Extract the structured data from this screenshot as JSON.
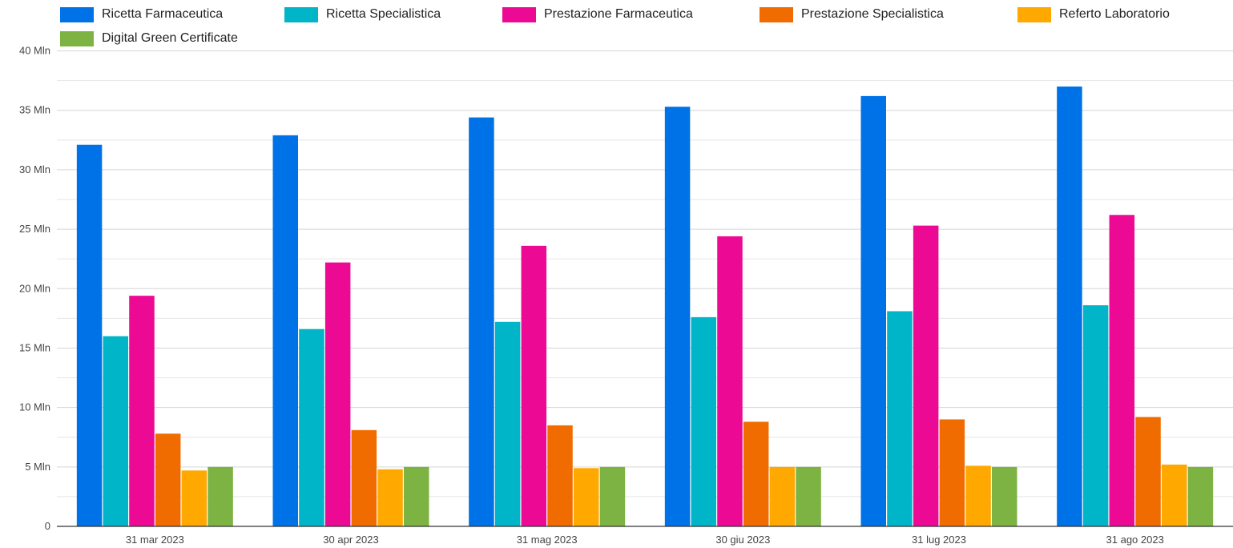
{
  "chart_data": {
    "type": "bar",
    "categories": [
      "31 mar 2023",
      "30 apr 2023",
      "31 mag 2023",
      "30 giu 2023",
      "31 lug 2023",
      "31 ago 2023"
    ],
    "series": [
      {
        "name": "Ricetta Farmaceutica",
        "color": "#0072e8",
        "values": [
          32.1,
          32.9,
          34.4,
          35.3,
          36.2,
          37.0
        ]
      },
      {
        "name": "Ricetta Specialistica",
        "color": "#00b5c8",
        "values": [
          16.0,
          16.6,
          17.2,
          17.6,
          18.1,
          18.6
        ]
      },
      {
        "name": "Prestazione Farmaceutica",
        "color": "#ec0a94",
        "values": [
          19.4,
          22.2,
          23.6,
          24.4,
          25.3,
          26.2
        ]
      },
      {
        "name": "Prestazione Specialistica",
        "color": "#f06c00",
        "values": [
          7.8,
          8.1,
          8.5,
          8.8,
          9.0,
          9.2
        ]
      },
      {
        "name": "Referto Laboratorio",
        "color": "#ffa800",
        "values": [
          4.7,
          4.8,
          4.9,
          5.0,
          5.1,
          5.2
        ]
      },
      {
        "name": "Digital Green Certificate",
        "color": "#7cb342",
        "values": [
          5.0,
          5.0,
          5.0,
          5.0,
          5.0,
          5.0
        ]
      }
    ],
    "yticks": [
      "0",
      "5 Mln",
      "10 Mln",
      "15 Mln",
      "20 Mln",
      "25 Mln",
      "30 Mln",
      "35 Mln",
      "40 Mln"
    ],
    "ylim": [
      0,
      40
    ],
    "grid": true,
    "legend_position": "top"
  }
}
